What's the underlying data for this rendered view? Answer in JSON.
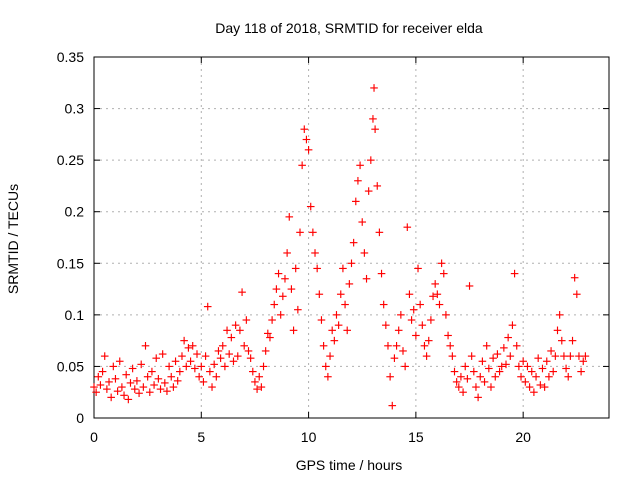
{
  "chart_data": {
    "type": "scatter",
    "title": "Day 118 of 2018, SRMTID for receiver elda",
    "xlabel": "GPS time / hours",
    "ylabel": "SRMTID / TECUs",
    "xlim": [
      0,
      24
    ],
    "ylim": [
      0,
      0.35
    ],
    "xticks": [
      0,
      5,
      10,
      15,
      20
    ],
    "xtick_labels": [
      "0",
      "5",
      "10",
      "15",
      "20"
    ],
    "yticks": [
      0,
      0.05,
      0.1,
      0.15,
      0.2,
      0.25,
      0.3,
      0.35
    ],
    "ytick_labels": [
      "0",
      "0.05",
      "0.1",
      "0.15",
      "0.2",
      "0.25",
      "0.3",
      "0.35"
    ],
    "grid": true,
    "marker": "plus",
    "series": [
      {
        "name": "SRMTID",
        "color": "#ff0000",
        "points": [
          [
            0.0,
            0.03
          ],
          [
            0.1,
            0.025
          ],
          [
            0.2,
            0.04
          ],
          [
            0.3,
            0.032
          ],
          [
            0.4,
            0.045
          ],
          [
            0.5,
            0.06
          ],
          [
            0.6,
            0.028
          ],
          [
            0.7,
            0.035
          ],
          [
            0.8,
            0.02
          ],
          [
            0.9,
            0.05
          ],
          [
            1.0,
            0.038
          ],
          [
            1.1,
            0.026
          ],
          [
            1.2,
            0.055
          ],
          [
            1.3,
            0.03
          ],
          [
            1.4,
            0.022
          ],
          [
            1.5,
            0.042
          ],
          [
            1.6,
            0.018
          ],
          [
            1.7,
            0.034
          ],
          [
            1.8,
            0.048
          ],
          [
            1.9,
            0.028
          ],
          [
            2.0,
            0.036
          ],
          [
            2.1,
            0.024
          ],
          [
            2.2,
            0.052
          ],
          [
            2.3,
            0.03
          ],
          [
            2.4,
            0.07
          ],
          [
            2.5,
            0.04
          ],
          [
            2.6,
            0.025
          ],
          [
            2.7,
            0.045
          ],
          [
            2.8,
            0.032
          ],
          [
            2.9,
            0.058
          ],
          [
            3.0,
            0.038
          ],
          [
            3.1,
            0.028
          ],
          [
            3.2,
            0.062
          ],
          [
            3.3,
            0.034
          ],
          [
            3.4,
            0.026
          ],
          [
            3.5,
            0.05
          ],
          [
            3.6,
            0.04
          ],
          [
            3.7,
            0.03
          ],
          [
            3.8,
            0.055
          ],
          [
            3.9,
            0.036
          ],
          [
            4.0,
            0.045
          ],
          [
            4.1,
            0.06
          ],
          [
            4.2,
            0.075
          ],
          [
            4.3,
            0.05
          ],
          [
            4.4,
            0.068
          ],
          [
            4.5,
            0.055
          ],
          [
            4.6,
            0.07
          ],
          [
            4.7,
            0.048
          ],
          [
            4.8,
            0.062
          ],
          [
            4.9,
            0.04
          ],
          [
            5.0,
            0.05
          ],
          [
            5.1,
            0.035
          ],
          [
            5.2,
            0.06
          ],
          [
            5.3,
            0.108
          ],
          [
            5.4,
            0.045
          ],
          [
            5.5,
            0.03
          ],
          [
            5.6,
            0.052
          ],
          [
            5.7,
            0.04
          ],
          [
            5.8,
            0.065
          ],
          [
            5.9,
            0.058
          ],
          [
            6.0,
            0.07
          ],
          [
            6.1,
            0.05
          ],
          [
            6.2,
            0.085
          ],
          [
            6.3,
            0.062
          ],
          [
            6.4,
            0.078
          ],
          [
            6.5,
            0.055
          ],
          [
            6.6,
            0.09
          ],
          [
            6.7,
            0.06
          ],
          [
            6.8,
            0.085
          ],
          [
            6.9,
            0.122
          ],
          [
            7.0,
            0.07
          ],
          [
            7.1,
            0.095
          ],
          [
            7.2,
            0.065
          ],
          [
            7.3,
            0.058
          ],
          [
            7.4,
            0.045
          ],
          [
            7.5,
            0.035
          ],
          [
            7.6,
            0.028
          ],
          [
            7.7,
            0.04
          ],
          [
            7.8,
            0.03
          ],
          [
            7.9,
            0.05
          ],
          [
            8.0,
            0.065
          ],
          [
            8.1,
            0.082
          ],
          [
            8.2,
            0.078
          ],
          [
            8.3,
            0.095
          ],
          [
            8.4,
            0.11
          ],
          [
            8.5,
            0.125
          ],
          [
            8.6,
            0.14
          ],
          [
            8.7,
            0.1
          ],
          [
            8.8,
            0.118
          ],
          [
            8.9,
            0.135
          ],
          [
            9.0,
            0.16
          ],
          [
            9.1,
            0.195
          ],
          [
            9.2,
            0.125
          ],
          [
            9.3,
            0.085
          ],
          [
            9.4,
            0.145
          ],
          [
            9.5,
            0.105
          ],
          [
            9.6,
            0.18
          ],
          [
            9.7,
            0.245
          ],
          [
            9.8,
            0.28
          ],
          [
            9.9,
            0.27
          ],
          [
            10.0,
            0.26
          ],
          [
            10.1,
            0.205
          ],
          [
            10.2,
            0.18
          ],
          [
            10.3,
            0.16
          ],
          [
            10.4,
            0.145
          ],
          [
            10.5,
            0.12
          ],
          [
            10.6,
            0.095
          ],
          [
            10.7,
            0.07
          ],
          [
            10.8,
            0.05
          ],
          [
            10.9,
            0.04
          ],
          [
            11.0,
            0.06
          ],
          [
            11.1,
            0.085
          ],
          [
            11.2,
            0.075
          ],
          [
            11.3,
            0.1
          ],
          [
            11.4,
            0.09
          ],
          [
            11.5,
            0.12
          ],
          [
            11.6,
            0.145
          ],
          [
            11.7,
            0.11
          ],
          [
            11.8,
            0.085
          ],
          [
            11.9,
            0.13
          ],
          [
            12.0,
            0.15
          ],
          [
            12.1,
            0.17
          ],
          [
            12.2,
            0.21
          ],
          [
            12.3,
            0.23
          ],
          [
            12.4,
            0.245
          ],
          [
            12.5,
            0.19
          ],
          [
            12.6,
            0.16
          ],
          [
            12.7,
            0.135
          ],
          [
            12.8,
            0.22
          ],
          [
            12.9,
            0.25
          ],
          [
            13.0,
            0.29
          ],
          [
            13.05,
            0.32
          ],
          [
            13.1,
            0.28
          ],
          [
            13.2,
            0.225
          ],
          [
            13.3,
            0.18
          ],
          [
            13.4,
            0.14
          ],
          [
            13.5,
            0.11
          ],
          [
            13.6,
            0.09
          ],
          [
            13.7,
            0.07
          ],
          [
            13.8,
            0.04
          ],
          [
            13.9,
            0.012
          ],
          [
            14.0,
            0.058
          ],
          [
            14.1,
            0.07
          ],
          [
            14.2,
            0.085
          ],
          [
            14.3,
            0.1
          ],
          [
            14.4,
            0.065
          ],
          [
            14.5,
            0.05
          ],
          [
            14.6,
            0.185
          ],
          [
            14.7,
            0.12
          ],
          [
            14.8,
            0.095
          ],
          [
            14.9,
            0.105
          ],
          [
            15.0,
            0.08
          ],
          [
            15.1,
            0.145
          ],
          [
            15.2,
            0.11
          ],
          [
            15.3,
            0.09
          ],
          [
            15.4,
            0.07
          ],
          [
            15.5,
            0.06
          ],
          [
            15.6,
            0.075
          ],
          [
            15.7,
            0.095
          ],
          [
            15.8,
            0.118
          ],
          [
            15.9,
            0.13
          ],
          [
            16.0,
            0.12
          ],
          [
            16.1,
            0.11
          ],
          [
            16.2,
            0.15
          ],
          [
            16.3,
            0.14
          ],
          [
            16.4,
            0.1
          ],
          [
            16.5,
            0.08
          ],
          [
            16.6,
            0.07
          ],
          [
            16.7,
            0.06
          ],
          [
            16.8,
            0.045
          ],
          [
            16.9,
            0.035
          ],
          [
            17.0,
            0.03
          ],
          [
            17.1,
            0.04
          ],
          [
            17.2,
            0.025
          ],
          [
            17.3,
            0.05
          ],
          [
            17.4,
            0.038
          ],
          [
            17.5,
            0.128
          ],
          [
            17.6,
            0.06
          ],
          [
            17.7,
            0.045
          ],
          [
            17.8,
            0.03
          ],
          [
            17.9,
            0.02
          ],
          [
            18.0,
            0.04
          ],
          [
            18.1,
            0.055
          ],
          [
            18.2,
            0.035
          ],
          [
            18.3,
            0.07
          ],
          [
            18.4,
            0.048
          ],
          [
            18.5,
            0.03
          ],
          [
            18.6,
            0.058
          ],
          [
            18.7,
            0.04
          ],
          [
            18.8,
            0.062
          ],
          [
            18.9,
            0.045
          ],
          [
            19.0,
            0.05
          ],
          [
            19.1,
            0.068
          ],
          [
            19.2,
            0.052
          ],
          [
            19.3,
            0.078
          ],
          [
            19.4,
            0.06
          ],
          [
            19.5,
            0.09
          ],
          [
            19.6,
            0.14
          ],
          [
            19.7,
            0.07
          ],
          [
            19.8,
            0.05
          ],
          [
            19.9,
            0.04
          ],
          [
            20.0,
            0.055
          ],
          [
            20.1,
            0.035
          ],
          [
            20.2,
            0.05
          ],
          [
            20.3,
            0.03
          ],
          [
            20.4,
            0.045
          ],
          [
            20.5,
            0.025
          ],
          [
            20.6,
            0.04
          ],
          [
            20.7,
            0.058
          ],
          [
            20.8,
            0.032
          ],
          [
            20.9,
            0.048
          ],
          [
            21.0,
            0.03
          ],
          [
            21.1,
            0.055
          ],
          [
            21.2,
            0.04
          ],
          [
            21.3,
            0.065
          ],
          [
            21.4,
            0.045
          ],
          [
            21.5,
            0.06
          ],
          [
            21.6,
            0.085
          ],
          [
            21.7,
            0.1
          ],
          [
            21.8,
            0.075
          ],
          [
            21.9,
            0.06
          ],
          [
            22.0,
            0.048
          ],
          [
            22.1,
            0.04
          ],
          [
            22.2,
            0.06
          ],
          [
            22.3,
            0.075
          ],
          [
            22.4,
            0.136
          ],
          [
            22.5,
            0.12
          ],
          [
            22.6,
            0.06
          ],
          [
            22.7,
            0.045
          ],
          [
            22.8,
            0.055
          ],
          [
            22.9,
            0.06
          ]
        ]
      }
    ]
  }
}
